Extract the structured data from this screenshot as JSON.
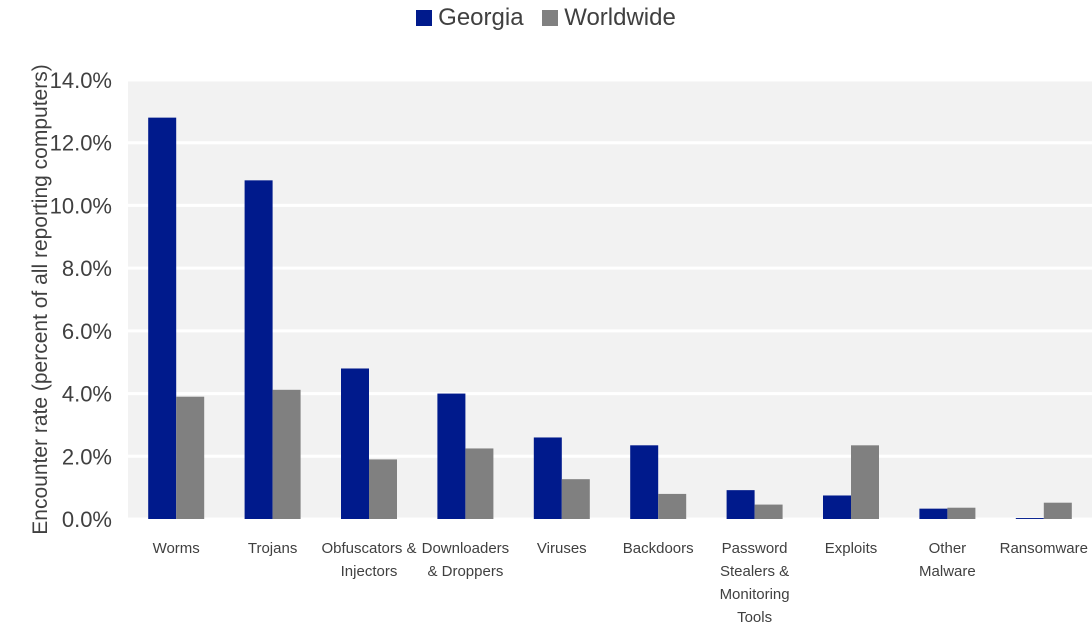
{
  "chart_data": {
    "type": "bar",
    "categories": [
      [
        "Worms"
      ],
      [
        "Trojans"
      ],
      [
        "Obfuscators &",
        "Injectors"
      ],
      [
        "Downloaders",
        "& Droppers"
      ],
      [
        "Viruses"
      ],
      [
        "Backdoors"
      ],
      [
        "Password",
        "Stealers &",
        "Monitoring",
        "Tools"
      ],
      [
        "Exploits"
      ],
      [
        "Other",
        "Malware"
      ],
      [
        "Ransomware"
      ]
    ],
    "series": [
      {
        "name": "Georgia",
        "color": "#001A8C",
        "values": [
          12.8,
          10.8,
          4.8,
          4.0,
          2.6,
          2.35,
          0.92,
          0.75,
          0.33,
          0.03
        ]
      },
      {
        "name": "Worldwide",
        "color": "#808080",
        "values": [
          3.9,
          4.12,
          1.9,
          2.25,
          1.27,
          0.8,
          0.46,
          2.35,
          0.36,
          0.52
        ]
      }
    ],
    "ylabel": "Encounter rate (percent of all reporting computers)",
    "ylim": [
      0,
      14
    ],
    "yticks": [
      "0.0%",
      "2.0%",
      "4.0%",
      "6.0%",
      "8.0%",
      "10.0%",
      "12.0%",
      "14.0%"
    ],
    "grid": true,
    "legend_position": "top-center",
    "plot_background": "#F2F2F2"
  }
}
